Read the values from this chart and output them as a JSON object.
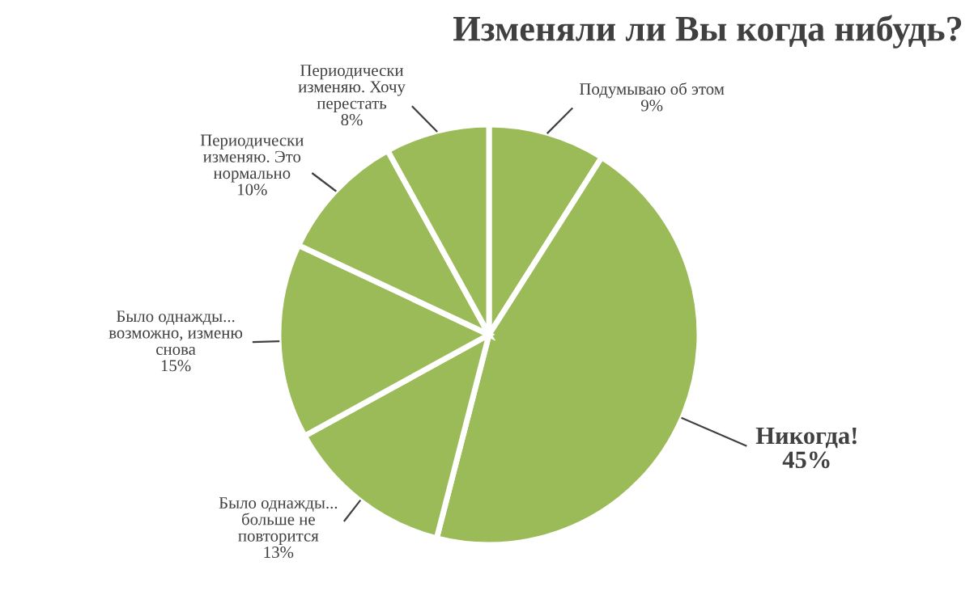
{
  "chart_data": {
    "type": "pie",
    "title": "Изменяли ли Вы когда нибудь?",
    "categories": [
      "Подумываю об этом",
      "Никогда!",
      "Было однажды...\nбольше не\nповторится",
      "Было однажды...\nвозможно, изменю\nснова",
      "Периодически\nизменяю. Это\nнормально",
      "Периодически\nизменяю. Хочу\nперестать"
    ],
    "values": [
      9,
      45,
      13,
      15,
      10,
      8
    ],
    "colors": [
      "#9bbb59",
      "#9bbb59",
      "#9bbb59",
      "#9bbb59",
      "#9bbb59",
      "#9bbb59"
    ],
    "value_labels": [
      "9%",
      "45%",
      "13%",
      "15%",
      "10%",
      "8%"
    ]
  }
}
